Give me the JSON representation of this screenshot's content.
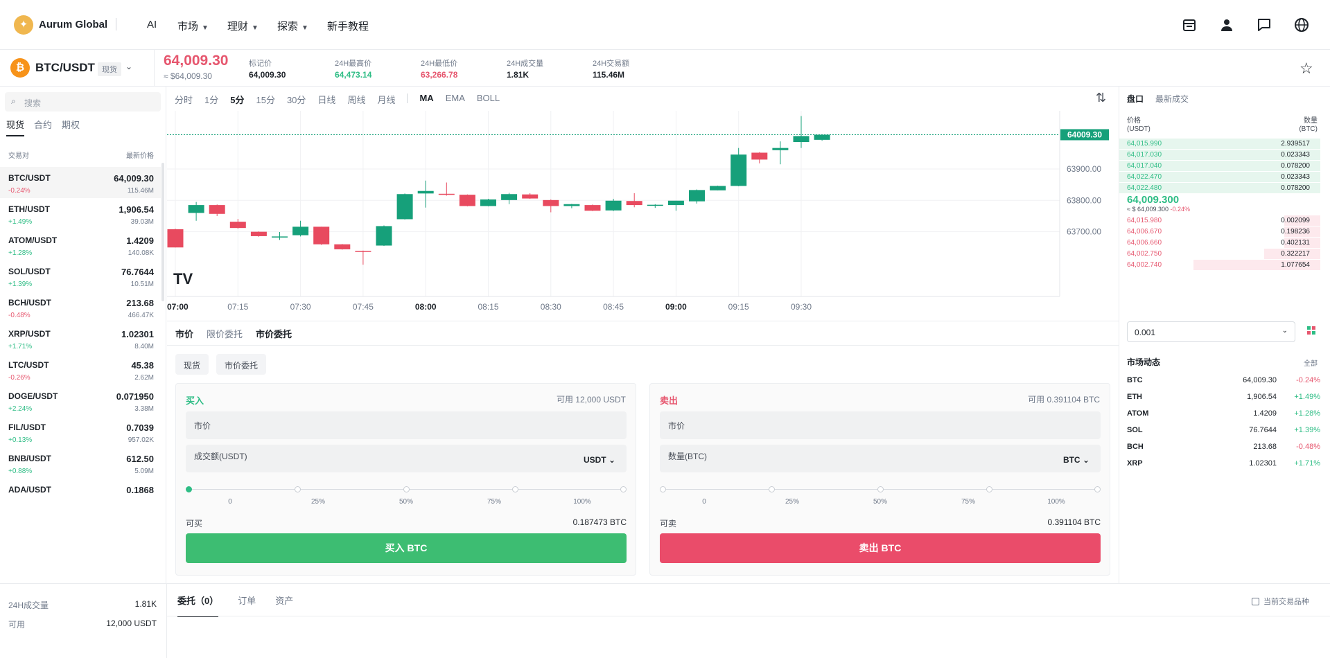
{
  "header": {
    "brand": "Aurum Global",
    "nav": [
      {
        "label": "AI",
        "dropdown": false
      },
      {
        "label": "市场",
        "dropdown": true
      },
      {
        "label": "理财",
        "dropdown": true
      },
      {
        "label": "探索",
        "dropdown": true
      },
      {
        "label": "新手教程",
        "dropdown": false
      }
    ],
    "icons": [
      "wallet-icon",
      "user-icon",
      "chat-icon",
      "globe-icon"
    ]
  },
  "ticker": {
    "coin_symbol": "₿",
    "pair": "BTC/USDT",
    "market_badge": "现货",
    "last_price": "64,009.30",
    "last_price_fiat": "≈ $64,009.30",
    "stats": [
      {
        "label": "标记价",
        "value": "64,009.30",
        "color": "#1e2329"
      },
      {
        "label": "24H最高价",
        "value": "64,473.14",
        "color": "#2ebd85"
      },
      {
        "label": "24H最低价",
        "value": "63,266.78",
        "color": "#e6566e"
      },
      {
        "label": "24H成交量",
        "value": "1.81K",
        "color": "#1e2329"
      },
      {
        "label": "24H交易额",
        "value": "115.46M",
        "color": "#1e2329"
      }
    ]
  },
  "sidebar": {
    "search_placeholder": "搜索",
    "tabs": [
      "现货",
      "合约",
      "期权"
    ],
    "col_pair": "交易对",
    "col_price": "最新价格",
    "pairs": [
      {
        "name": "BTC/USDT",
        "price": "64,009.30",
        "change": "-0.24%",
        "dir": "down",
        "vol": "115.46M"
      },
      {
        "name": "ETH/USDT",
        "price": "1,906.54",
        "change": "+1.49%",
        "dir": "up",
        "vol": "39.03M"
      },
      {
        "name": "ATOM/USDT",
        "price": "1.4209",
        "change": "+1.28%",
        "dir": "up",
        "vol": "140.08K"
      },
      {
        "name": "SOL/USDT",
        "price": "76.7644",
        "change": "+1.39%",
        "dir": "up",
        "vol": "10.51M"
      },
      {
        "name": "BCH/USDT",
        "price": "213.68",
        "change": "-0.48%",
        "dir": "down",
        "vol": "466.47K"
      },
      {
        "name": "XRP/USDT",
        "price": "1.02301",
        "change": "+1.71%",
        "dir": "up",
        "vol": "8.40M"
      },
      {
        "name": "LTC/USDT",
        "price": "45.38",
        "change": "-0.26%",
        "dir": "down",
        "vol": "2.62M"
      },
      {
        "name": "DOGE/USDT",
        "price": "0.071950",
        "change": "+2.24%",
        "dir": "up",
        "vol": "3.38M"
      },
      {
        "name": "FIL/USDT",
        "price": "0.7039",
        "change": "+0.13%",
        "dir": "up",
        "vol": "957.02K"
      },
      {
        "name": "BNB/USDT",
        "price": "612.50",
        "change": "+0.88%",
        "dir": "up",
        "vol": "5.09M"
      },
      {
        "name": "ADA/USDT",
        "price": "0.1868",
        "change": "",
        "dir": "up",
        "vol": ""
      }
    ]
  },
  "chart_toolbar": {
    "intervals": [
      "分时",
      "1分",
      "5分",
      "15分",
      "30分",
      "日线",
      "周线",
      "月线"
    ],
    "active_interval": "5分",
    "indicators": [
      "MA",
      "EMA",
      "BOLL"
    ],
    "active_indicator": "MA"
  },
  "chart_data": {
    "type": "candlestick",
    "interval": "5m",
    "current_price": 64009.3,
    "current_price_label": "64009.30",
    "y_ticks": [
      "63900.00",
      "63800.00",
      "63700.00"
    ],
    "y_tick_values": [
      63900,
      63800,
      63700
    ],
    "x_ticks": [
      "07:00",
      "07:15",
      "07:30",
      "07:45",
      "08:00",
      "08:15",
      "08:30",
      "08:45",
      "09:00",
      "09:15",
      "09:30"
    ],
    "x_ticks_bold": [
      "07:00",
      "08:00",
      "09:00"
    ],
    "candles": [
      {
        "t": "07:00",
        "o": 63708,
        "h": 63710,
        "l": 63650,
        "c": 63650
      },
      {
        "t": "07:05",
        "o": 63760,
        "h": 63795,
        "l": 63735,
        "c": 63785
      },
      {
        "t": "07:10",
        "o": 63785,
        "h": 63787,
        "l": 63750,
        "c": 63757
      },
      {
        "t": "07:15",
        "o": 63732,
        "h": 63741,
        "l": 63710,
        "c": 63712
      },
      {
        "t": "07:20",
        "o": 63700,
        "h": 63701,
        "l": 63684,
        "c": 63686
      },
      {
        "t": "07:25",
        "o": 63682,
        "h": 63699,
        "l": 63674,
        "c": 63685
      },
      {
        "t": "07:30",
        "o": 63689,
        "h": 63735,
        "l": 63685,
        "c": 63716
      },
      {
        "t": "07:35",
        "o": 63716,
        "h": 63716,
        "l": 63658,
        "c": 63660
      },
      {
        "t": "07:40",
        "o": 63660,
        "h": 63661,
        "l": 63643,
        "c": 63644
      },
      {
        "t": "07:45",
        "o": 63639,
        "h": 63640,
        "l": 63595,
        "c": 63638
      },
      {
        "t": "07:50",
        "o": 63656,
        "h": 63720,
        "l": 63655,
        "c": 63718
      },
      {
        "t": "07:55",
        "o": 63740,
        "h": 63822,
        "l": 63739,
        "c": 63820
      },
      {
        "t": "08:00",
        "o": 63822,
        "h": 63863,
        "l": 63777,
        "c": 63830
      },
      {
        "t": "08:05",
        "o": 63821,
        "h": 63857,
        "l": 63815,
        "c": 63818
      },
      {
        "t": "08:10",
        "o": 63818,
        "h": 63819,
        "l": 63781,
        "c": 63782
      },
      {
        "t": "08:15",
        "o": 63782,
        "h": 63805,
        "l": 63781,
        "c": 63803
      },
      {
        "t": "08:20",
        "o": 63801,
        "h": 63824,
        "l": 63788,
        "c": 63820
      },
      {
        "t": "08:25",
        "o": 63819,
        "h": 63823,
        "l": 63805,
        "c": 63806
      },
      {
        "t": "08:30",
        "o": 63801,
        "h": 63803,
        "l": 63762,
        "c": 63782
      },
      {
        "t": "08:35",
        "o": 63782,
        "h": 63789,
        "l": 63775,
        "c": 63788
      },
      {
        "t": "08:40",
        "o": 63785,
        "h": 63787,
        "l": 63766,
        "c": 63767
      },
      {
        "t": "08:45",
        "o": 63768,
        "h": 63805,
        "l": 63766,
        "c": 63799
      },
      {
        "t": "08:50",
        "o": 63798,
        "h": 63823,
        "l": 63778,
        "c": 63785
      },
      {
        "t": "08:55",
        "o": 63783,
        "h": 63788,
        "l": 63776,
        "c": 63786
      },
      {
        "t": "09:00",
        "o": 63785,
        "h": 63799,
        "l": 63767,
        "c": 63799
      },
      {
        "t": "09:05",
        "o": 63797,
        "h": 63835,
        "l": 63790,
        "c": 63833
      },
      {
        "t": "09:10",
        "o": 63832,
        "h": 63847,
        "l": 63832,
        "c": 63846
      },
      {
        "t": "09:15",
        "o": 63846,
        "h": 63967,
        "l": 63845,
        "c": 63946
      },
      {
        "t": "09:20",
        "o": 63952,
        "h": 63954,
        "l": 63918,
        "c": 63930
      },
      {
        "t": "09:25",
        "o": 63960,
        "h": 63988,
        "l": 63915,
        "c": 63967
      },
      {
        "t": "09:30",
        "o": 63986,
        "h": 64069,
        "l": 63967,
        "c": 64005
      },
      {
        "t": "09:35",
        "o": 63993,
        "h": 64010,
        "l": 63990,
        "c": 64009.3
      }
    ],
    "watermark": "TV"
  },
  "order": {
    "tabs": [
      "市价",
      "限价委托",
      "市价委托"
    ],
    "active_tab": "市价",
    "pills": [
      "现货",
      "市价委托"
    ],
    "buy": {
      "title": "买入",
      "available": "可用 12,000 USDT",
      "price_field": "市价",
      "amount_label": "成交额(USDT)",
      "amount_unit": "USDT",
      "slider_marks": [
        "0",
        "25%",
        "50%",
        "75%",
        "100%"
      ],
      "slider_value": 0,
      "can_label": "可买",
      "can_value": "0.187473 BTC",
      "button": "买入 BTC"
    },
    "sell": {
      "title": "卖出",
      "available": "可用 0.391104 BTC",
      "price_field": "市价",
      "amount_label": "数量(BTC)",
      "amount_unit": "BTC",
      "slider_marks": [
        "0",
        "25%",
        "50%",
        "75%",
        "100%"
      ],
      "slider_value": 0,
      "can_label": "可卖",
      "can_value": "0.391104 BTC",
      "button": "卖出 BTC"
    }
  },
  "orderbook": {
    "tabs": [
      "盘口",
      "最新成交"
    ],
    "active_tab": "盘口",
    "col_price": "价格",
    "col_price_unit": "(USDT)",
    "col_qty": "数量",
    "col_qty_unit": "(BTC)",
    "bids_top": [
      {
        "price": "64,015.990",
        "qty": "2.939517"
      },
      {
        "price": "64,017.030",
        "qty": "0.023343"
      },
      {
        "price": "64,017.040",
        "qty": "0.078200"
      },
      {
        "price": "64,022.470",
        "qty": "0.023343"
      },
      {
        "price": "64,022.480",
        "qty": "0.078200"
      }
    ],
    "mid_price": "64,009.300",
    "mid_fiat": "≈ $ 64,009.300",
    "mid_change": "-0.24%",
    "asks_bottom": [
      {
        "price": "64,015.980",
        "qty": "0.002099",
        "depth": 0.18
      },
      {
        "price": "64,006.670",
        "qty": "0.198236",
        "depth": 0.18
      },
      {
        "price": "64,006.660",
        "qty": "0.402131",
        "depth": 0.18
      },
      {
        "price": "64,002.750",
        "qty": "0.322217",
        "depth": 0.28
      },
      {
        "price": "64,002.740",
        "qty": "1.077654",
        "depth": 0.63
      }
    ],
    "step": "0.001"
  },
  "market_moves": {
    "title": "市场动态",
    "all_label": "全部",
    "rows": [
      {
        "name": "BTC",
        "price": "64,009.30",
        "change": "-0.24%",
        "dir": "down"
      },
      {
        "name": "ETH",
        "price": "1,906.54",
        "change": "+1.49%",
        "dir": "up"
      },
      {
        "name": "ATOM",
        "price": "1.4209",
        "change": "+1.28%",
        "dir": "up"
      },
      {
        "name": "SOL",
        "price": "76.7644",
        "change": "+1.39%",
        "dir": "up"
      },
      {
        "name": "BCH",
        "price": "213.68",
        "change": "-0.48%",
        "dir": "down"
      },
      {
        "name": "XRP",
        "price": "1.02301",
        "change": "+1.71%",
        "dir": "up"
      }
    ]
  },
  "bottom": {
    "vol_label": "24H成交量",
    "vol_value": "1.81K",
    "avail_label": "可用",
    "avail_value": "12,000 USDT",
    "tabs": [
      "委托（0）",
      "订单",
      "资产"
    ],
    "active_tab": "委托（0）",
    "checkbox_label": "当前交易品种"
  },
  "colors": {
    "up": "#2ebd85",
    "down": "#e6566e",
    "candle_up": "#16a07a",
    "candle_down": "#e84a5f"
  }
}
